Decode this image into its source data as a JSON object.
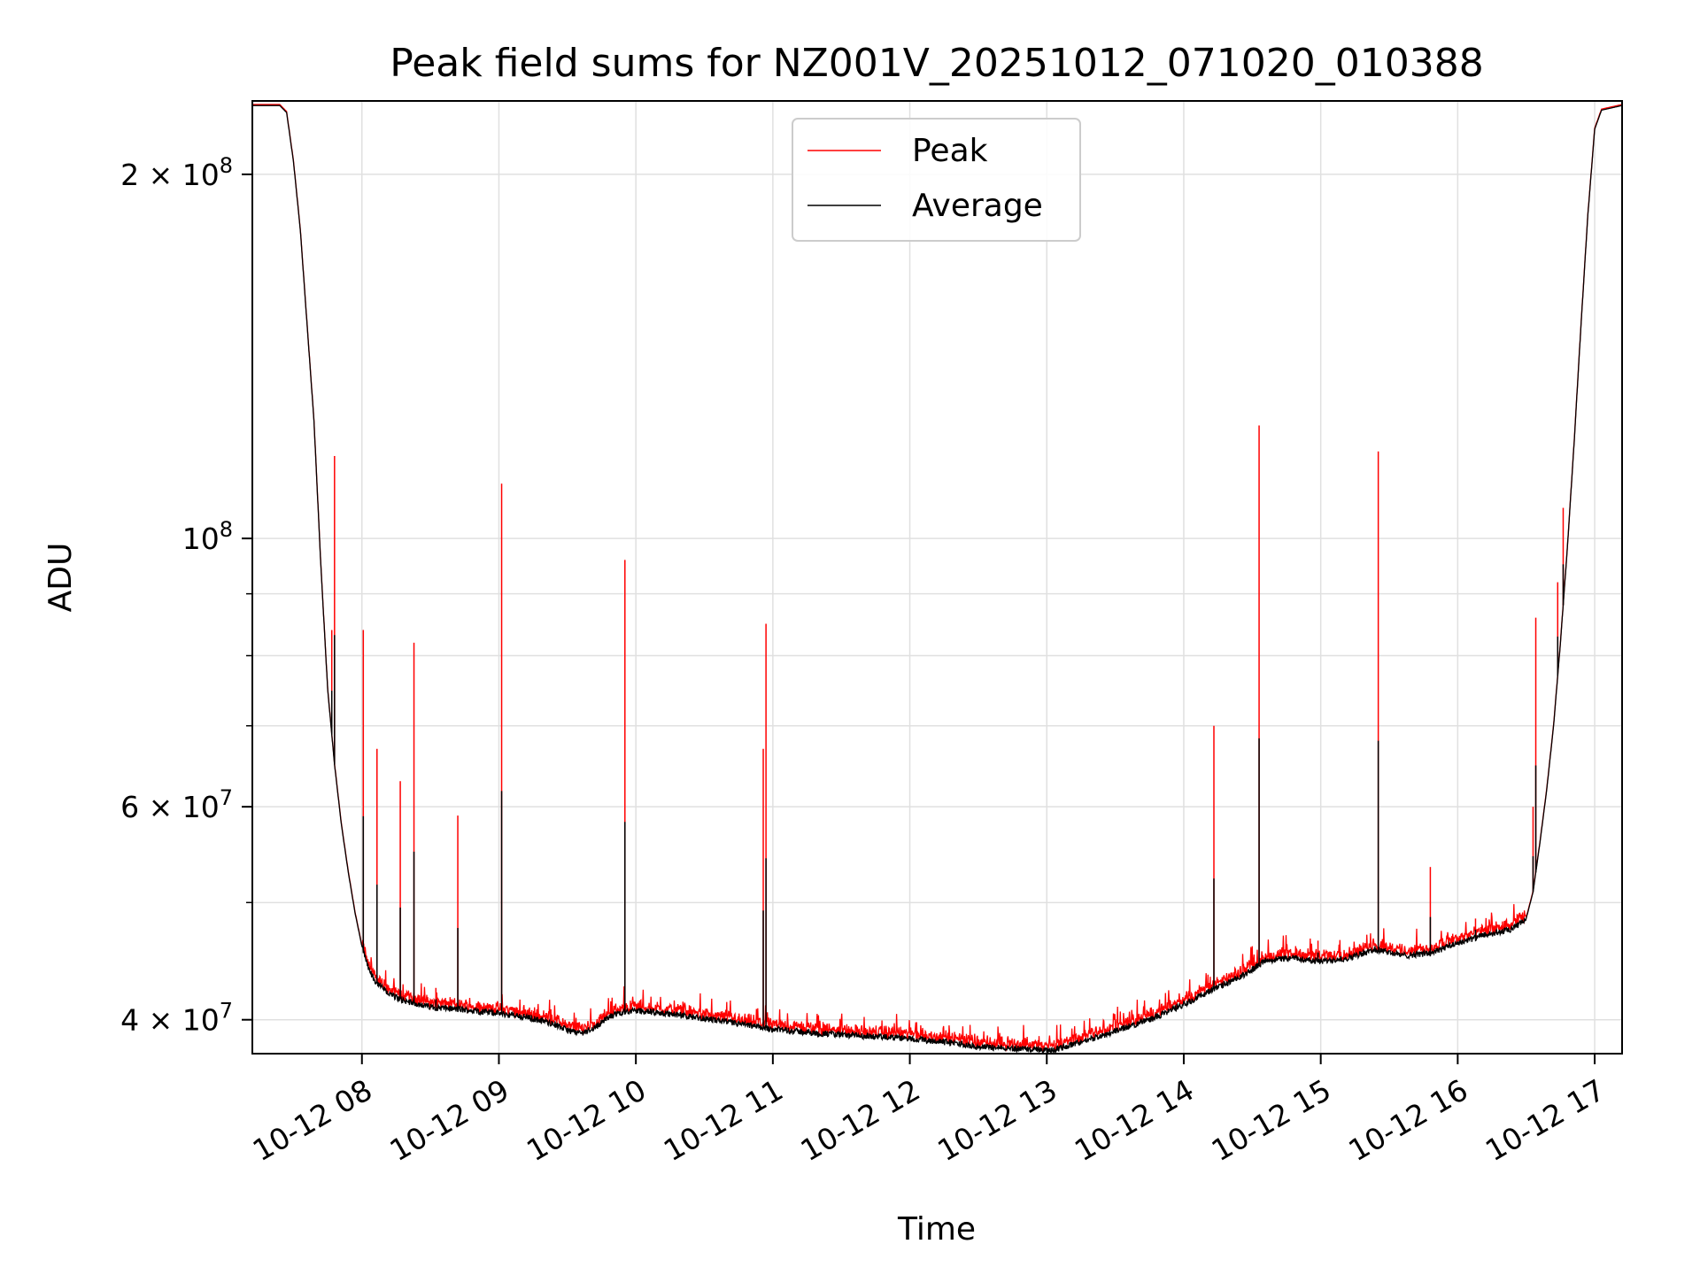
{
  "chart_data": {
    "type": "line",
    "title": "Peak field sums for NZ001V_20251012_071020_010388",
    "xlabel": "Time",
    "ylabel": "ADU",
    "yscale": "log",
    "ylim": [
      37500000,
      230000000
    ],
    "xlim_hours": [
      7.2,
      17.2
    ],
    "grid": true,
    "legend_position": "upper center",
    "x_tick_values": [
      8,
      9,
      10,
      11,
      12,
      13,
      14,
      15,
      16,
      17
    ],
    "x_tick_labels": [
      "10-12 08",
      "10-12 09",
      "10-12 10",
      "10-12 11",
      "10-12 12",
      "10-12 13",
      "10-12 14",
      "10-12 15",
      "10-12 16",
      "10-12 17"
    ],
    "y_major_ticks": [
      {
        "value": 40000000,
        "base": "4 × 10",
        "exp": "7"
      },
      {
        "value": 60000000,
        "base": "6 × 10",
        "exp": "7"
      },
      {
        "value": 100000000,
        "base": "10",
        "exp": "8"
      },
      {
        "value": 200000000,
        "base": "2 × 10",
        "exp": "8"
      }
    ],
    "y_minor_ticks": [
      50000000,
      70000000,
      80000000,
      90000000
    ],
    "series": [
      {
        "name": "Peak",
        "color": "#ff0000"
      },
      {
        "name": "Average",
        "color": "#000000"
      }
    ],
    "average_curve": [
      [
        7.2,
        228000000
      ],
      [
        7.4,
        228000000
      ],
      [
        7.45,
        225000000
      ],
      [
        7.5,
        205000000
      ],
      [
        7.55,
        180000000
      ],
      [
        7.6,
        150000000
      ],
      [
        7.65,
        125000000
      ],
      [
        7.7,
        95000000
      ],
      [
        7.75,
        75000000
      ],
      [
        7.8,
        65000000
      ],
      [
        7.85,
        58000000
      ],
      [
        7.9,
        53000000
      ],
      [
        7.95,
        49000000
      ],
      [
        8.0,
        46000000
      ],
      [
        8.05,
        44000000
      ],
      [
        8.1,
        43000000
      ],
      [
        8.2,
        42000000
      ],
      [
        8.3,
        41500000
      ],
      [
        8.5,
        41000000
      ],
      [
        8.7,
        40800000
      ],
      [
        9.0,
        40500000
      ],
      [
        9.2,
        40200000
      ],
      [
        9.4,
        39700000
      ],
      [
        9.5,
        39200000
      ],
      [
        9.6,
        39000000
      ],
      [
        9.7,
        39400000
      ],
      [
        9.8,
        40200000
      ],
      [
        9.9,
        40600000
      ],
      [
        10.0,
        40700000
      ],
      [
        10.2,
        40500000
      ],
      [
        10.5,
        40100000
      ],
      [
        10.8,
        39600000
      ],
      [
        11.0,
        39300000
      ],
      [
        11.3,
        39000000
      ],
      [
        11.6,
        38800000
      ],
      [
        12.0,
        38600000
      ],
      [
        12.3,
        38300000
      ],
      [
        12.5,
        38000000
      ],
      [
        12.7,
        37900000
      ],
      [
        12.9,
        37800000
      ],
      [
        13.0,
        37700000
      ],
      [
        13.1,
        37900000
      ],
      [
        13.2,
        38200000
      ],
      [
        13.4,
        38800000
      ],
      [
        13.6,
        39500000
      ],
      [
        13.8,
        40200000
      ],
      [
        14.0,
        41200000
      ],
      [
        14.2,
        42300000
      ],
      [
        14.4,
        43300000
      ],
      [
        14.5,
        44000000
      ],
      [
        14.6,
        44800000
      ],
      [
        14.8,
        45000000
      ],
      [
        15.0,
        44700000
      ],
      [
        15.2,
        45000000
      ],
      [
        15.4,
        45700000
      ],
      [
        15.5,
        45500000
      ],
      [
        15.6,
        45200000
      ],
      [
        15.8,
        45400000
      ],
      [
        16.0,
        46300000
      ],
      [
        16.2,
        47000000
      ],
      [
        16.4,
        47500000
      ],
      [
        16.5,
        48500000
      ],
      [
        16.55,
        51000000
      ],
      [
        16.6,
        56000000
      ],
      [
        16.65,
        62000000
      ],
      [
        16.7,
        70000000
      ],
      [
        16.75,
        82000000
      ],
      [
        16.8,
        98000000
      ],
      [
        16.85,
        120000000
      ],
      [
        16.9,
        150000000
      ],
      [
        16.95,
        185000000
      ],
      [
        17.0,
        218000000
      ],
      [
        17.05,
        226000000
      ],
      [
        17.2,
        228000000
      ]
    ],
    "peak_spikes": [
      {
        "t": 7.78,
        "value": 84000000
      },
      {
        "t": 7.8,
        "value": 117000000
      },
      {
        "t": 8.01,
        "value": 84000000
      },
      {
        "t": 8.11,
        "value": 67000000
      },
      {
        "t": 8.28,
        "value": 63000000
      },
      {
        "t": 8.38,
        "value": 82000000
      },
      {
        "t": 8.54,
        "value": 42500000
      },
      {
        "t": 8.7,
        "value": 59000000
      },
      {
        "t": 9.02,
        "value": 111000000
      },
      {
        "t": 9.92,
        "value": 96000000
      },
      {
        "t": 10.93,
        "value": 67000000
      },
      {
        "t": 10.95,
        "value": 85000000
      },
      {
        "t": 14.22,
        "value": 70000000
      },
      {
        "t": 14.55,
        "value": 124000000
      },
      {
        "t": 14.98,
        "value": 46500000
      },
      {
        "t": 15.42,
        "value": 118000000
      },
      {
        "t": 15.8,
        "value": 53500000
      },
      {
        "t": 16.13,
        "value": 48500000
      },
      {
        "t": 16.55,
        "value": 60000000
      },
      {
        "t": 16.57,
        "value": 86000000
      },
      {
        "t": 16.73,
        "value": 92000000
      },
      {
        "t": 16.77,
        "value": 106000000
      }
    ]
  }
}
